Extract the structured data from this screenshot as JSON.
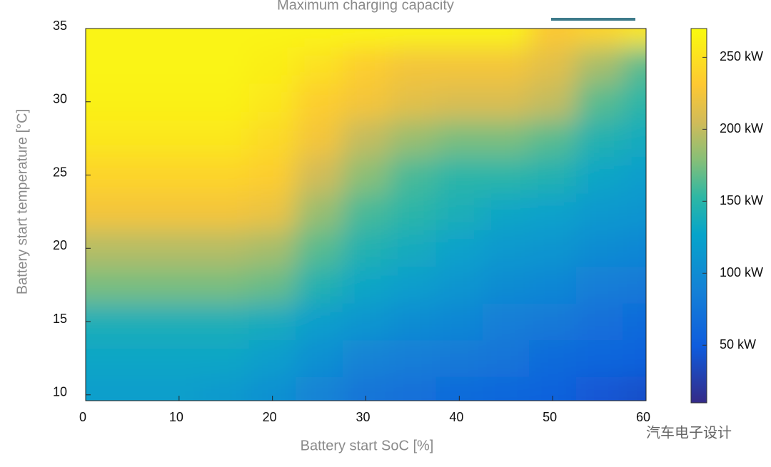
{
  "chart_data": {
    "type": "heatmap",
    "title": "Maximum charging capacity",
    "x_label": "Battery start SoC [%]",
    "y_label": "Battery start temperature [°C]",
    "watermark": "汽车电子设计",
    "x": [
      0,
      5,
      10,
      15,
      20,
      25,
      30,
      35,
      40,
      45,
      50,
      55,
      60
    ],
    "y": [
      10,
      12.5,
      15,
      17.5,
      20,
      22.5,
      25,
      27.5,
      30,
      32.5,
      35
    ],
    "z": [
      [
        120,
        120,
        120,
        115,
        105,
        90,
        75,
        70,
        65,
        60,
        55,
        45,
        40
      ],
      [
        130,
        130,
        130,
        130,
        120,
        105,
        90,
        85,
        80,
        75,
        65,
        60,
        55
      ],
      [
        140,
        140,
        140,
        140,
        135,
        120,
        110,
        100,
        95,
        85,
        80,
        70,
        65
      ],
      [
        175,
        175,
        175,
        175,
        170,
        145,
        130,
        120,
        110,
        100,
        95,
        85,
        80
      ],
      [
        195,
        195,
        195,
        195,
        190,
        165,
        145,
        135,
        125,
        115,
        110,
        100,
        95
      ],
      [
        225,
        225,
        225,
        225,
        220,
        185,
        160,
        150,
        140,
        130,
        125,
        115,
        110
      ],
      [
        240,
        240,
        240,
        240,
        235,
        205,
        180,
        160,
        150,
        150,
        145,
        130,
        120
      ],
      [
        255,
        255,
        255,
        255,
        245,
        225,
        200,
        185,
        175,
        175,
        165,
        145,
        135
      ],
      [
        262,
        262,
        262,
        262,
        255,
        235,
        225,
        215,
        210,
        210,
        200,
        165,
        150
      ],
      [
        265,
        265,
        265,
        265,
        260,
        250,
        235,
        225,
        225,
        225,
        215,
        190,
        165
      ],
      [
        265,
        265,
        265,
        265,
        265,
        265,
        265,
        265,
        265,
        265,
        230,
        240,
        255
      ]
    ],
    "colormap": "parula",
    "clim": [
      10,
      270
    ],
    "cticks": [
      {
        "value": 50,
        "label": "50 kW"
      },
      {
        "value": 100,
        "label": "100 kW"
      },
      {
        "value": 150,
        "label": "150 kW"
      },
      {
        "value": 200,
        "label": "200 kW"
      },
      {
        "value": 250,
        "label": "250 kW"
      }
    ],
    "xlim": [
      0,
      60
    ],
    "xticks": [
      0,
      10,
      20,
      30,
      40,
      50,
      60
    ],
    "ylim": [
      9.6,
      35
    ],
    "yticks": [
      10,
      15,
      20,
      25,
      30,
      35
    ]
  }
}
